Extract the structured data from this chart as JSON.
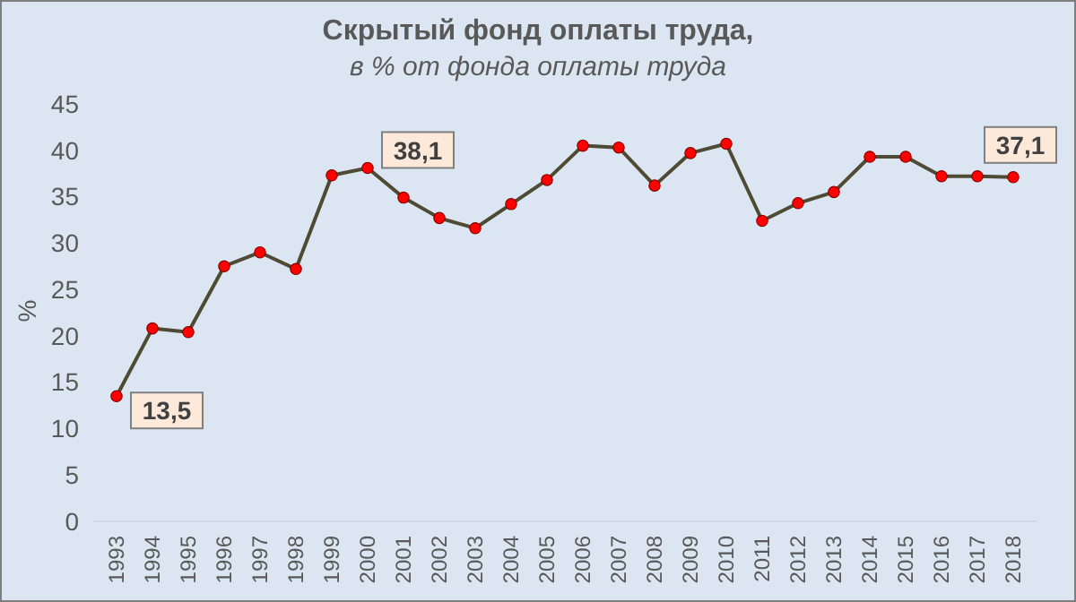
{
  "chart_data": {
    "type": "line",
    "title": "Скрытый фонд оплаты труда,",
    "subtitle": "в % от фонда оплаты труда",
    "ylabel": "%",
    "categories": [
      "1993",
      "1994",
      "1995",
      "1996",
      "1997",
      "1998",
      "1999",
      "2000",
      "2001",
      "2002",
      "2003",
      "2004",
      "2005",
      "2006",
      "2007",
      "2008",
      "2009",
      "2010",
      "2011",
      "2012",
      "2013",
      "2014",
      "2015",
      "2016",
      "2017",
      "2018"
    ],
    "series": [
      {
        "color": "#4f4a33",
        "values": [
          13.5,
          20.8,
          20.4,
          27.5,
          29.0,
          27.2,
          37.3,
          38.1,
          34.9,
          32.7,
          31.6,
          34.2,
          36.8,
          40.5,
          40.3,
          36.2,
          39.7,
          40.7,
          32.4,
          34.3,
          35.5,
          39.3,
          39.3,
          37.2,
          37.2,
          37.1
        ]
      }
    ],
    "marker": "circle",
    "grid": false,
    "ylim": [
      0,
      45
    ],
    "yticks": [
      0,
      5,
      10,
      15,
      20,
      25,
      30,
      35,
      40,
      45
    ],
    "annotations": [
      {
        "text": "13,5",
        "x": "1993",
        "y": 13.5
      },
      {
        "text": "38,1",
        "x": "2000",
        "y": 38.1
      },
      {
        "text": "37,1",
        "x": "2018",
        "y": 37.1
      }
    ]
  }
}
